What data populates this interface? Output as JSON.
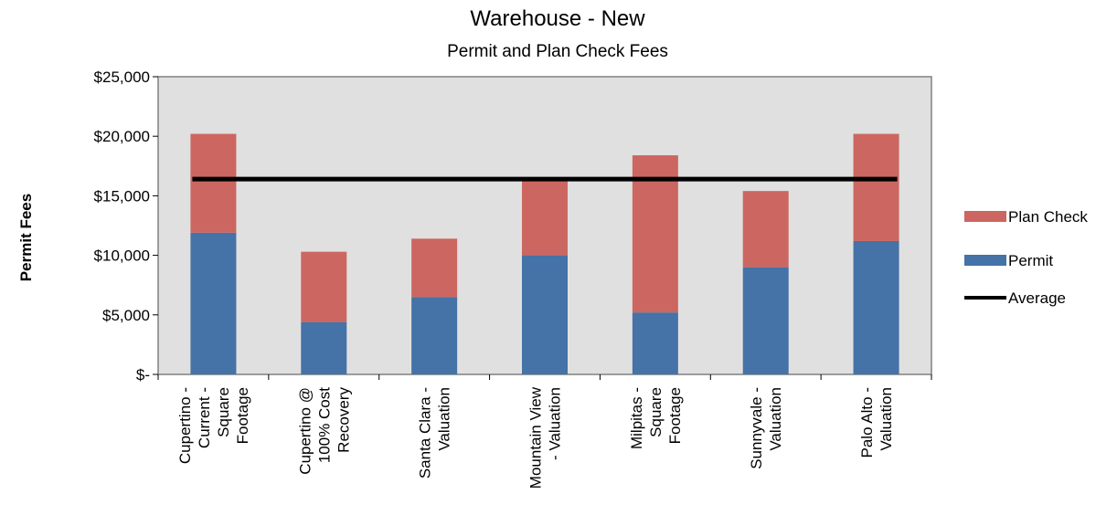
{
  "chart_data": {
    "type": "bar",
    "stacked": true,
    "title": "Warehouse - New",
    "subtitle": "Permit and Plan Check Fees",
    "ylabel": "Permit Fees",
    "xlabel": "",
    "ylim": [
      0,
      25000
    ],
    "yticks": [
      0,
      5000,
      10000,
      15000,
      20000,
      25000
    ],
    "ytick_labels": [
      "$-",
      "$5,000",
      "$10,000",
      "$15,000",
      "$20,000",
      "$25,000"
    ],
    "grid": false,
    "legend_position": "right",
    "categories": [
      [
        "Cupertino -",
        "Current -",
        "Square",
        "Footage"
      ],
      [
        "Cupertino @",
        "100% Cost",
        "Recovery"
      ],
      [
        "Santa Clara -",
        "Valuation"
      ],
      [
        "Mountain View",
        "- Valuation"
      ],
      [
        "Milpitas -",
        "Square",
        "Footage"
      ],
      [
        "Sunnyvale -",
        "Valuation"
      ],
      [
        "Palo Alto -",
        "Valuation"
      ]
    ],
    "series": [
      {
        "name": "Permit",
        "color": "#4572A7",
        "values": [
          11900,
          4400,
          6500,
          10000,
          5200,
          9000,
          11200
        ]
      },
      {
        "name": "Plan Check",
        "color": "#CC6661",
        "values": [
          8300,
          5900,
          4900,
          6400,
          13200,
          6400,
          9000
        ]
      }
    ],
    "average": {
      "name": "Average",
      "value": 16400,
      "color": "#000000"
    },
    "legend": [
      {
        "name": "Plan Check",
        "color": "#CC6661",
        "kind": "box"
      },
      {
        "name": "Permit",
        "color": "#4572A7",
        "kind": "box"
      },
      {
        "name": "Average",
        "color": "#000000",
        "kind": "line"
      }
    ],
    "plot_background": "#E0E0E0"
  }
}
